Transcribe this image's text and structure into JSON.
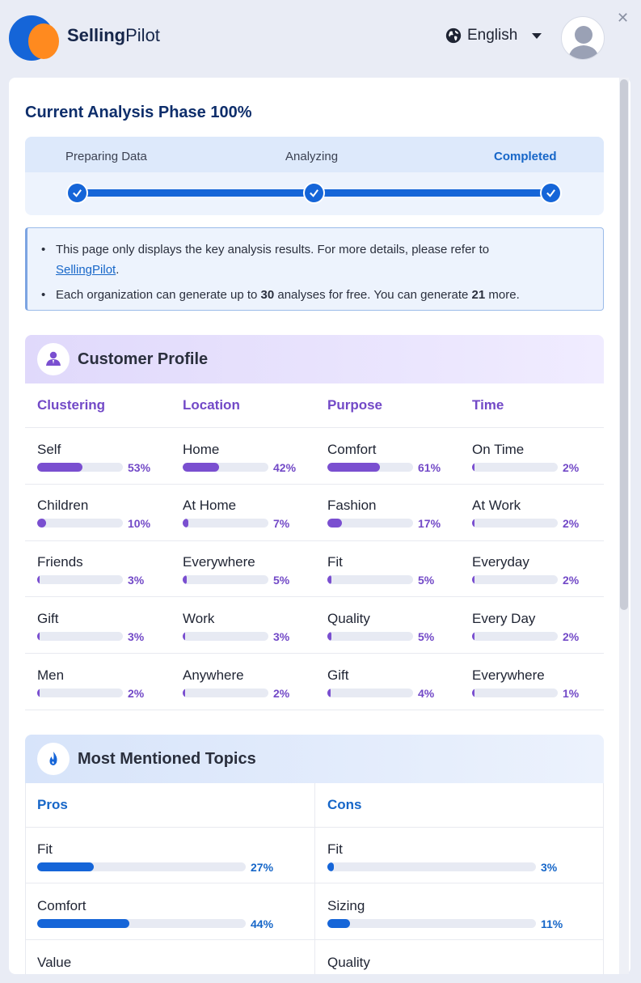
{
  "header": {
    "brand_bold": "Selling",
    "brand_light": "Pilot",
    "language": "English"
  },
  "phase": {
    "title": "Current Analysis Phase 100%",
    "steps": [
      "Preparing Data",
      "Analyzing",
      "Completed"
    ]
  },
  "notice": {
    "line1_text": "This page only displays the key analysis results. For more details, please refer to ",
    "line1_link": "SellingPilot",
    "line1_end": ".",
    "line2_pre": "Each organization can generate up to ",
    "line2_limit": "30",
    "line2_mid": " analyses for free. You can generate ",
    "line2_remaining": "21",
    "line2_end": " more."
  },
  "customer_profile": {
    "title": "Customer Profile",
    "columns": [
      {
        "header": "Clustering",
        "items": [
          {
            "label": "Self",
            "pct": "53%",
            "value": 53
          },
          {
            "label": "Children",
            "pct": "10%",
            "value": 10
          },
          {
            "label": "Friends",
            "pct": "3%",
            "value": 3
          },
          {
            "label": "Gift",
            "pct": "3%",
            "value": 3
          },
          {
            "label": "Men",
            "pct": "2%",
            "value": 2
          }
        ]
      },
      {
        "header": "Location",
        "items": [
          {
            "label": "Home",
            "pct": "42%",
            "value": 42
          },
          {
            "label": "At Home",
            "pct": "7%",
            "value": 7
          },
          {
            "label": "Everywhere",
            "pct": "5%",
            "value": 5
          },
          {
            "label": "Work",
            "pct": "3%",
            "value": 3
          },
          {
            "label": "Anywhere",
            "pct": "2%",
            "value": 2
          }
        ]
      },
      {
        "header": "Purpose",
        "items": [
          {
            "label": "Comfort",
            "pct": "61%",
            "value": 61
          },
          {
            "label": "Fashion",
            "pct": "17%",
            "value": 17
          },
          {
            "label": "Fit",
            "pct": "5%",
            "value": 5
          },
          {
            "label": "Quality",
            "pct": "5%",
            "value": 5
          },
          {
            "label": "Gift",
            "pct": "4%",
            "value": 4
          }
        ]
      },
      {
        "header": "Time",
        "items": [
          {
            "label": "On Time",
            "pct": "2%",
            "value": 2
          },
          {
            "label": "At Work",
            "pct": "2%",
            "value": 2
          },
          {
            "label": "Everyday",
            "pct": "2%",
            "value": 2
          },
          {
            "label": "Every Day",
            "pct": "2%",
            "value": 2
          },
          {
            "label": "Everywhere",
            "pct": "1%",
            "value": 1
          }
        ]
      }
    ]
  },
  "topics": {
    "title": "Most Mentioned Topics",
    "columns": [
      {
        "header": "Pros",
        "items": [
          {
            "label": "Fit",
            "pct": "27%",
            "value": 27
          },
          {
            "label": "Comfort",
            "pct": "44%",
            "value": 44
          },
          {
            "label": "Value"
          }
        ]
      },
      {
        "header": "Cons",
        "items": [
          {
            "label": "Fit",
            "pct": "3%",
            "value": 3
          },
          {
            "label": "Sizing",
            "pct": "11%",
            "value": 11
          },
          {
            "label": "Quality"
          }
        ]
      }
    ]
  },
  "colors": {
    "primary_blue": "#1565d8",
    "accent_purple": "#7a4fd0",
    "brand_orange": "#ff8a1f"
  }
}
